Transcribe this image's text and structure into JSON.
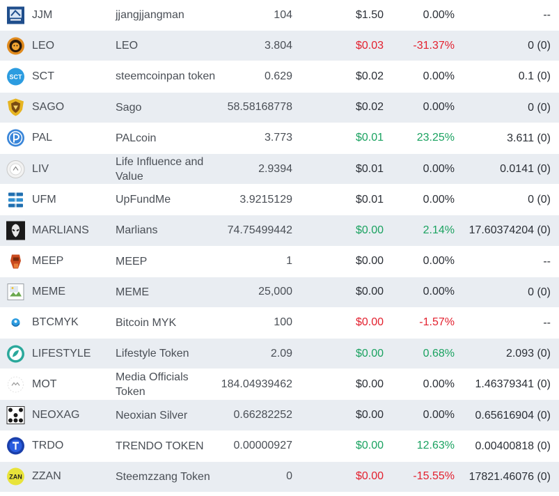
{
  "tokens": [
    {
      "symbol": "JJM",
      "name": "jjangjjangman",
      "balance": "104",
      "price": "$1.50",
      "change": "0.00%",
      "volume": "--",
      "trend": "neutral",
      "icon": "jjm-logo-icon"
    },
    {
      "symbol": "LEO",
      "name": "LEO",
      "balance": "3.804",
      "price": "$0.03",
      "change": "-31.37%",
      "volume": "0 (0)",
      "trend": "down",
      "icon": "leo-lion-icon"
    },
    {
      "symbol": "SCT",
      "name": "steemcoinpan token",
      "balance": "0.629",
      "price": "$0.02",
      "change": "0.00%",
      "volume": "0.1 (0)",
      "trend": "neutral",
      "icon": "sct-badge-icon"
    },
    {
      "symbol": "SAGO",
      "name": "Sago",
      "balance": "58.58168778",
      "price": "$0.02",
      "change": "0.00%",
      "volume": "0 (0)",
      "trend": "neutral",
      "icon": "sago-shield-icon"
    },
    {
      "symbol": "PAL",
      "name": "PALcoin",
      "balance": "3.773",
      "price": "$0.01",
      "change": "23.25%",
      "volume": "3.611 (0)",
      "trend": "up",
      "icon": "pal-coin-icon"
    },
    {
      "symbol": "LIV",
      "name": "Life Influence and Value",
      "balance": "2.9394",
      "price": "$0.01",
      "change": "0.00%",
      "volume": "0.0141 (0)",
      "trend": "neutral",
      "icon": "liv-coin-icon"
    },
    {
      "symbol": "UFM",
      "name": "UpFundMe",
      "balance": "3.9215129",
      "price": "$0.01",
      "change": "0.00%",
      "volume": "0 (0)",
      "trend": "neutral",
      "icon": "ufm-stack-icon"
    },
    {
      "symbol": "MARLIANS",
      "name": "Marlians",
      "balance": "74.75499442",
      "price": "$0.00",
      "change": "2.14%",
      "volume": "17.60374204 (0)",
      "trend": "up",
      "icon": "marlians-alien-icon"
    },
    {
      "symbol": "MEEP",
      "name": "MEEP",
      "balance": "1",
      "price": "$0.00",
      "change": "0.00%",
      "volume": "--",
      "trend": "neutral",
      "icon": "meep-figure-icon"
    },
    {
      "symbol": "MEME",
      "name": "MEME",
      "balance": "25,000",
      "price": "$0.00",
      "change": "0.00%",
      "volume": "0 (0)",
      "trend": "neutral",
      "icon": "broken-image-icon"
    },
    {
      "symbol": "BTCMYK",
      "name": "Bitcoin MYK",
      "balance": "100",
      "price": "$0.00",
      "change": "-1.57%",
      "volume": "--",
      "trend": "down",
      "icon": "btcmyk-logo-icon"
    },
    {
      "symbol": "LIFESTYLE",
      "name": "Lifestyle Token",
      "balance": "2.09",
      "price": "$0.00",
      "change": "0.68%",
      "volume": "2.093 (0)",
      "trend": "up",
      "icon": "lifestyle-leaf-icon"
    },
    {
      "symbol": "MOT",
      "name": "Media Officials Token",
      "balance": "184.04939462",
      "price": "$0.00",
      "change": "0.00%",
      "volume": "1.46379341 (0)",
      "trend": "neutral",
      "icon": "mot-logo-icon"
    },
    {
      "symbol": "NEOXAG",
      "name": "Neoxian Silver",
      "balance": "0.66282252",
      "price": "$0.00",
      "change": "0.00%",
      "volume": "0.65616904 (0)",
      "trend": "neutral",
      "icon": "neoxag-grid-icon"
    },
    {
      "symbol": "TRDO",
      "name": "TRENDO TOKEN",
      "balance": "0.00000927",
      "price": "$0.00",
      "change": "12.63%",
      "volume": "0.00400818 (0)",
      "trend": "up",
      "icon": "trdo-coin-icon"
    },
    {
      "symbol": "ZZAN",
      "name": "Steemzzang Token",
      "balance": "0",
      "price": "$0.00",
      "change": "-15.55%",
      "volume": "17821.46076 (0)",
      "trend": "down",
      "icon": "zzan-logo-icon"
    }
  ],
  "icon_text": {
    "sct": "SCT",
    "zzan": "ZAN"
  },
  "colors": {
    "up": "#1aa260",
    "down": "#e3202e",
    "neutral": "#2b2f36",
    "row_alt": "#e9edf2"
  }
}
